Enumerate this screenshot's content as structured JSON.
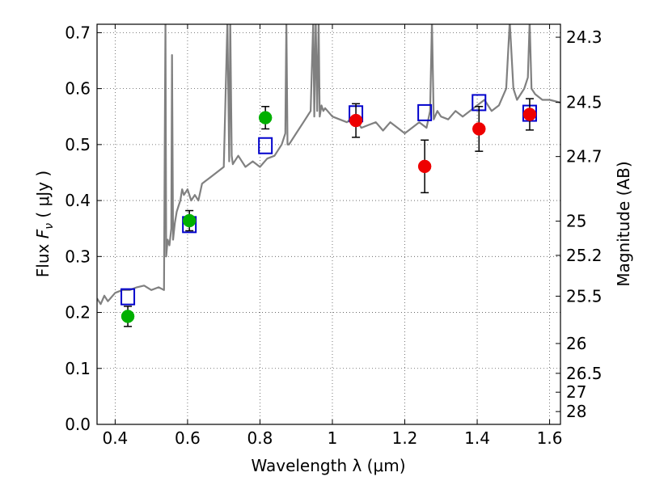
{
  "chart_data": {
    "type": "scatter",
    "xlabel": "Wavelength  λ (μm)",
    "ylabel": "Flux  F_ν  (μJy)",
    "ylabel_parts": {
      "pre": "Flux  ",
      "sym": "F",
      "sub": "ν",
      "post": "  ( μJy )"
    },
    "y2label": "Magnitude (AB)",
    "xlim": [
      0.35,
      1.63
    ],
    "ylim": [
      0.0,
      0.715
    ],
    "xticks": [
      0.4,
      0.6,
      0.8,
      1.0,
      1.2,
      1.4,
      1.6
    ],
    "xtick_labels": [
      "0.4",
      "0.6",
      "0.8",
      "1",
      "1.2",
      "1.4",
      "1.6"
    ],
    "yticks": [
      0.0,
      0.1,
      0.2,
      0.3,
      0.4,
      0.5,
      0.6,
      0.7
    ],
    "ytick_labels": [
      "0.0",
      "0.1",
      "0.2",
      "0.3",
      "0.4",
      "0.5",
      "0.6",
      "0.7"
    ],
    "y2ticks": [
      {
        "label": "24.3",
        "flux": 0.6918
      },
      {
        "label": "24.5",
        "flux": 0.5754
      },
      {
        "label": "24.7",
        "flux": 0.4786
      },
      {
        "label": "25",
        "flux": 0.3631
      },
      {
        "label": "25.2",
        "flux": 0.302
      },
      {
        "label": "25.5",
        "flux": 0.2291
      },
      {
        "label": "26",
        "flux": 0.1445
      },
      {
        "label": "26.5",
        "flux": 0.0912
      },
      {
        "label": "27",
        "flux": 0.0575
      },
      {
        "label": "28",
        "flux": 0.0229
      }
    ],
    "grid": true,
    "colors": {
      "spectrum": "#808080",
      "model": "#0000cc",
      "obs_green": "#00b000",
      "obs_red": "#ee0000",
      "errorbar": "#000000",
      "grid": "#555555"
    },
    "series": [
      {
        "kind": "line",
        "x": [
          0.35,
          0.36,
          0.37,
          0.38,
          0.4,
          0.42,
          0.44,
          0.46,
          0.48,
          0.5,
          0.52,
          0.535,
          0.537,
          0.539,
          0.541,
          0.545,
          0.55,
          0.555,
          0.557,
          0.56,
          0.565,
          0.57,
          0.575,
          0.58,
          0.585,
          0.59,
          0.6,
          0.61,
          0.62,
          0.63,
          0.64,
          0.65,
          0.66,
          0.68,
          0.7,
          0.71,
          0.715,
          0.718,
          0.722,
          0.725,
          0.73,
          0.74,
          0.76,
          0.78,
          0.8,
          0.82,
          0.84,
          0.86,
          0.87,
          0.873,
          0.876,
          0.88,
          0.9,
          0.92,
          0.94,
          0.947,
          0.95,
          0.954,
          0.958,
          0.962,
          0.965,
          0.97,
          0.975,
          0.98,
          1.0,
          1.02,
          1.04,
          1.06,
          1.08,
          1.1,
          1.12,
          1.14,
          1.16,
          1.18,
          1.2,
          1.22,
          1.24,
          1.26,
          1.27,
          1.275,
          1.28,
          1.29,
          1.3,
          1.32,
          1.34,
          1.36,
          1.38,
          1.4,
          1.42,
          1.44,
          1.46,
          1.48,
          1.49,
          1.5,
          1.51,
          1.52,
          1.53,
          1.54,
          1.545,
          1.55,
          1.56,
          1.58,
          1.6,
          1.63
        ],
        "y": [
          0.225,
          0.215,
          0.23,
          0.22,
          0.235,
          0.24,
          0.24,
          0.245,
          0.248,
          0.24,
          0.245,
          0.24,
          0.5,
          0.72,
          0.3,
          0.33,
          0.32,
          0.35,
          0.66,
          0.33,
          0.36,
          0.38,
          0.39,
          0.4,
          0.42,
          0.41,
          0.42,
          0.4,
          0.41,
          0.4,
          0.43,
          0.435,
          0.44,
          0.45,
          0.46,
          0.72,
          0.47,
          0.72,
          0.48,
          0.465,
          0.47,
          0.48,
          0.46,
          0.47,
          0.46,
          0.475,
          0.48,
          0.5,
          0.52,
          0.72,
          0.5,
          0.5,
          0.52,
          0.54,
          0.56,
          0.72,
          0.55,
          0.72,
          0.56,
          0.72,
          0.55,
          0.57,
          0.56,
          0.565,
          0.55,
          0.545,
          0.54,
          0.55,
          0.53,
          0.535,
          0.54,
          0.525,
          0.54,
          0.53,
          0.52,
          0.53,
          0.54,
          0.53,
          0.56,
          0.72,
          0.545,
          0.56,
          0.55,
          0.545,
          0.56,
          0.55,
          0.56,
          0.57,
          0.58,
          0.56,
          0.57,
          0.6,
          0.72,
          0.6,
          0.58,
          0.59,
          0.6,
          0.62,
          0.72,
          0.6,
          0.59,
          0.58,
          0.58,
          0.575
        ]
      },
      {
        "kind": "open-square",
        "x": [
          0.435,
          0.605,
          0.815,
          1.065,
          1.255,
          1.405,
          1.545
        ],
        "y": [
          0.228,
          0.357,
          0.498,
          0.555,
          0.557,
          0.575,
          0.556
        ]
      },
      {
        "kind": "filled-circle-green",
        "x": [
          0.435,
          0.605,
          0.815
        ],
        "y": [
          0.193,
          0.364,
          0.548
        ],
        "yerr": [
          0.018,
          0.018,
          0.02
        ]
      },
      {
        "kind": "filled-circle-red",
        "x": [
          1.065,
          1.255,
          1.405,
          1.545
        ],
        "y": [
          0.543,
          0.461,
          0.528,
          0.554
        ],
        "yerr": [
          0.03,
          0.047,
          0.04,
          0.028
        ]
      }
    ]
  }
}
